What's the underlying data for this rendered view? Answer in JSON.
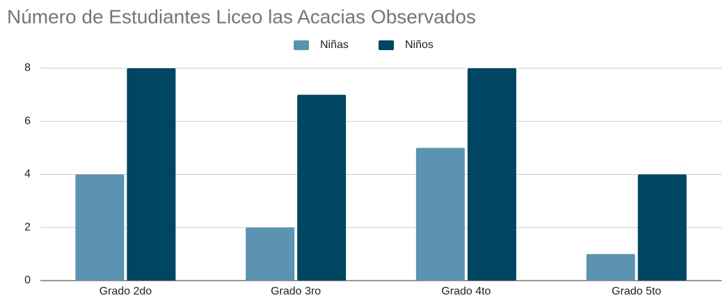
{
  "chart_data": {
    "type": "bar",
    "title": "Número de Estudiantes Liceo las Acacias Observados",
    "categories": [
      "Grado 2do",
      "Grado 3ro",
      "Grado 4to",
      "Grado 5to"
    ],
    "series": [
      {
        "name": "Niñas",
        "color": "#5b93b0",
        "values": [
          4,
          2,
          5,
          1
        ]
      },
      {
        "name": "Niños",
        "color": "#004562",
        "values": [
          8,
          7,
          8,
          4
        ]
      }
    ],
    "ylim": [
      0,
      8
    ],
    "yticks": [
      0,
      2,
      4,
      6,
      8
    ],
    "grid": true,
    "legend": "top"
  }
}
